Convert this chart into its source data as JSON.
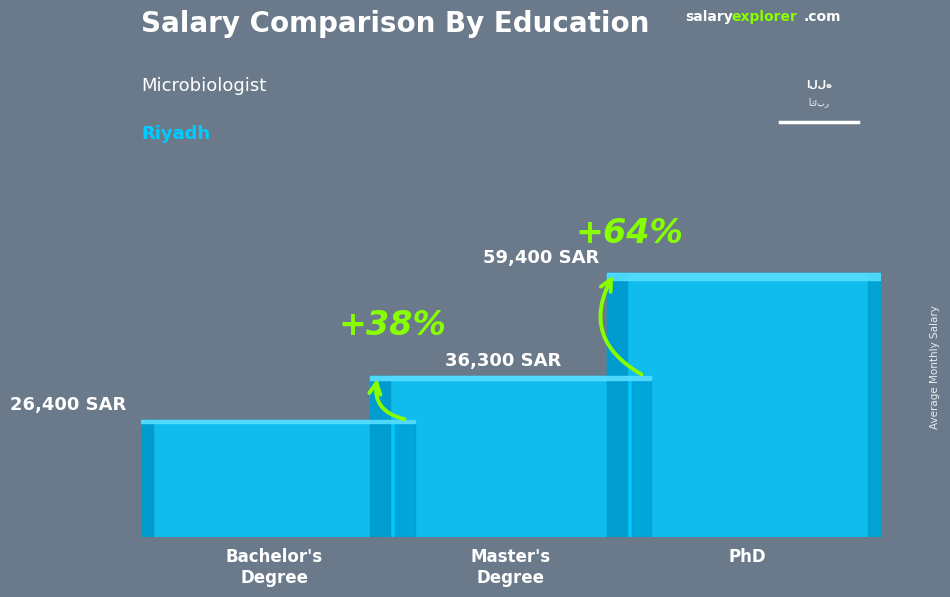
{
  "title": "Salary Comparison By Education",
  "subtitle1": "Microbiologist",
  "subtitle2": "Riyadh",
  "categories": [
    "Bachelor's\nDegree",
    "Master's\nDegree",
    "PhD"
  ],
  "values": [
    26400,
    36300,
    59400
  ],
  "value_labels": [
    "26,400 SAR",
    "36,300 SAR",
    "59,400 SAR"
  ],
  "pct_labels": [
    "+38%",
    "+64%"
  ],
  "bar_color": "#00C8FF",
  "bar_color_left": "#0099CC",
  "bar_color_top": "#55DDFF",
  "title_color": "#FFFFFF",
  "subtitle1_color": "#FFFFFF",
  "subtitle2_color": "#00CCFF",
  "value_label_color": "#FFFFFF",
  "pct_color": "#88FF00",
  "arrow_color": "#88FF00",
  "bg_color": "#6a7a8a",
  "watermark_salary": "salary",
  "watermark_explorer": "explorer",
  "watermark_com": ".com",
  "watermark_color_white": "#FFFFFF",
  "watermark_color_green": "#88FF00",
  "side_label": "Average Monthly Salary",
  "flag_bg": "#3a9e3a",
  "title_fontsize": 20,
  "subtitle1_fontsize": 13,
  "subtitle2_fontsize": 13,
  "value_fontsize": 12,
  "pct_fontsize": 24,
  "cat_fontsize": 12,
  "ylim": [
    0,
    75000
  ],
  "bar_width": 0.38,
  "bar_positions": [
    0.18,
    0.5,
    0.82
  ],
  "xlim": [
    0,
    1
  ]
}
